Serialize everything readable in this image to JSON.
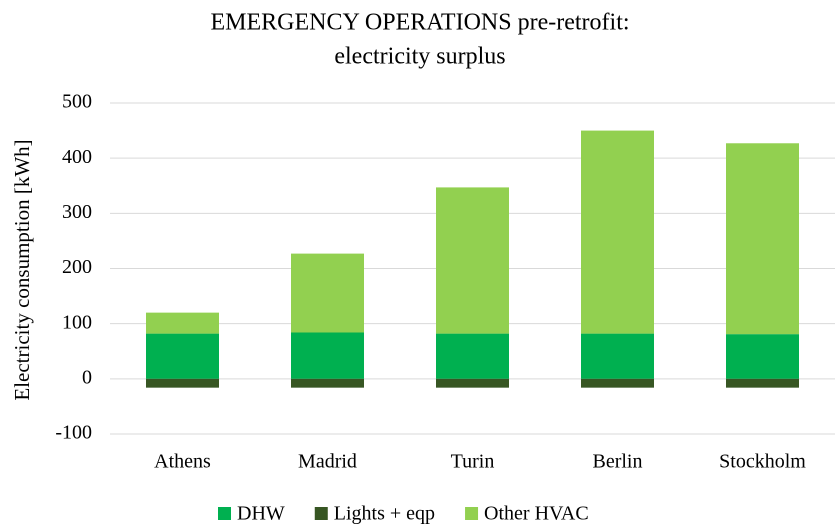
{
  "chart_data": {
    "type": "bar",
    "stacked": true,
    "title": [
      "EMERGENCY OPERATIONS pre-retrofit:",
      "electricity surplus"
    ],
    "y_label": "Electricity consumption [kWh]",
    "categories": [
      "Athens",
      "Madrid",
      "Turin",
      "Berlin",
      "Stockholm"
    ],
    "series": [
      {
        "name": "DHW",
        "color": "#00b050",
        "values": [
          82,
          84,
          82,
          82,
          81
        ]
      },
      {
        "name": "Lights + eqp",
        "color": "#375623",
        "values": [
          -16,
          -16,
          -16,
          -16,
          -16
        ]
      },
      {
        "name": "Other HVAC",
        "color": "#92d050",
        "values": [
          38,
          143,
          265,
          368,
          346
        ]
      }
    ],
    "ylim": [
      -100,
      500
    ],
    "yticks": [
      -100,
      0,
      100,
      200,
      300,
      400,
      500
    ],
    "grid": true,
    "legend": "bottom"
  }
}
